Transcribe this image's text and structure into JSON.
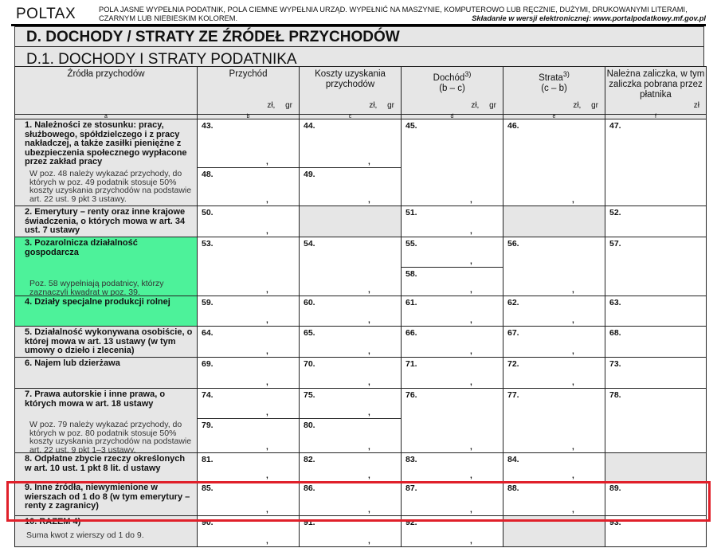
{
  "header": {
    "brand": "POLTAX",
    "instructions": "POLA JASNE WYPEŁNIA PODATNIK, POLA CIEMNE WYPEŁNIA URZĄD. WYPEŁNIĆ NA MASZYNIE, KOMPUTEROWO LUB RĘCZNIE, DUŻYMI, DRUKOWANYMI LITERAMI, CZARNYM LUB NIEBIESKIM KOLOREM.",
    "e_filing": "Składanie w wersji elektronicznej: www.portalpodatkowy.mf.gov.pl"
  },
  "section": {
    "title": "D. DOCHODY / STRATY ZE ŹRÓDEŁ PRZYCHODÓW",
    "subtitle": "D.1. DOCHODY I STRATY PODATNIKA"
  },
  "columns": [
    {
      "title": "Źródła przychodów",
      "sub": "",
      "sup": "",
      "unit": "",
      "letter": "a"
    },
    {
      "title": "Przychód",
      "sub": "",
      "sup": "",
      "unit": "zł, gr",
      "letter": "b"
    },
    {
      "title": "Koszty uzyskania przychodów",
      "sub": "",
      "sup": "",
      "unit": "zł, gr",
      "letter": "c"
    },
    {
      "title": "Dochód",
      "sup": "3)",
      "sub": "(b – c)",
      "unit": "zł, gr",
      "letter": "d"
    },
    {
      "title": "Strata",
      "sup": "3)",
      "sub": "(c – b)",
      "unit": "zł, gr",
      "letter": "e"
    },
    {
      "title": "Należna zaliczka, w tym zaliczka pobrana przez płatnika",
      "sub": "",
      "sup": "",
      "unit": "zł",
      "letter": "f"
    }
  ],
  "rows": [
    {
      "label": "1. Należności ze stosunku: pracy, służbowego, spółdzielczego i z pracy nakładczej, a także zasiłki pieniężne z ubezpieczenia społecznego wypłacone przez zakład pracy",
      "note": "W poz. 48 należy wykazać przychody, do których w poz. 49 podatnik stosuje 50% koszty uzyskania przychodów na podstawie art. 22 ust. 9 pkt 3 ustawy.",
      "cells": [
        [
          "43.",
          "48."
        ],
        [
          "44.",
          "49."
        ],
        "45.",
        "46.",
        "47."
      ]
    },
    {
      "label": "2. Emerytury – renty oraz inne krajowe świadczenia, o których mowa w art. 34 ust. 7 ustawy",
      "note": "",
      "cells": [
        "50.",
        null,
        "51.",
        null,
        "52."
      ]
    },
    {
      "label": "3. Pozarolnicza działalność gospodarcza",
      "note": "Poz. 58 wypełniają podatnicy, którzy zaznaczyli kwadrat w poz. 39.",
      "cells": [
        "53.",
        "54.",
        [
          "55.",
          "58."
        ],
        "56.",
        "57."
      ],
      "highlight": "#4df29a"
    },
    {
      "label": "4. Działy specjalne produkcji rolnej",
      "note": "",
      "cells": [
        "59.",
        "60.",
        "61.",
        "62.",
        "63."
      ],
      "highlight": "#4df29a"
    },
    {
      "label": "5. Działalność wykonywana osobiście, o której mowa w art. 13 ustawy (w tym umowy o dzieło i zlecenia)",
      "note": "",
      "cells": [
        "64.",
        "65.",
        "66.",
        "67.",
        "68."
      ]
    },
    {
      "label": "6. Najem lub dzierżawa",
      "note": "",
      "cells": [
        "69.",
        "70.",
        "71.",
        "72.",
        "73."
      ]
    },
    {
      "label": "7. Prawa autorskie i inne prawa, o których mowa w art. 18 ustawy",
      "note": "W poz. 79 należy wykazać przychody, do których w poz. 80 podatnik stosuje 50% koszty uzyskania przychodów na podstawie art. 22 ust. 9 pkt 1–3 ustawy.",
      "cells": [
        [
          "74.",
          "79."
        ],
        [
          "75.",
          "80."
        ],
        "76.",
        "77.",
        "78."
      ]
    },
    {
      "label": "8. Odpłatne zbycie rzeczy określonych w art. 10 ust. 1 pkt 8 lit. d ustawy",
      "note": "",
      "cells": [
        "81.",
        "82.",
        "83.",
        "84.",
        null
      ]
    },
    {
      "label": "9. Inne źródła, niewymienione w wierszach od 1 do 8 (w tym emerytury – renty z zagranicy)",
      "note": "",
      "cells": [
        "85.",
        "86.",
        "87.",
        "88.",
        "89."
      ],
      "highlighted_box": "#e0202a"
    },
    {
      "label": "10. RAZEM 4)",
      "note": "Suma kwot z wierszy od 1 do 9.",
      "cells": [
        "90.",
        "91.",
        "92.",
        null,
        "93."
      ]
    }
  ],
  "colors": {
    "shaded": "#e6e6e6",
    "green": "#4df29a",
    "annotation": "#e0202a"
  }
}
